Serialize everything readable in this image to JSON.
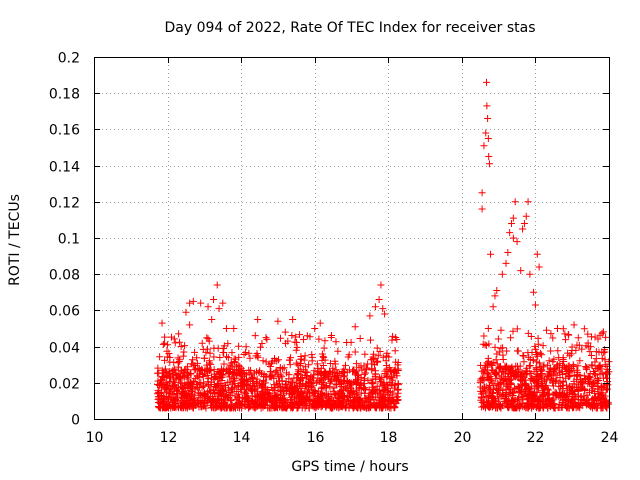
{
  "chart_data": {
    "type": "scatter",
    "title": "Day 094 of 2022, Rate Of TEC Index for receiver stas",
    "xlabel": "GPS time / hours",
    "ylabel": "ROTI / TECUs",
    "xlim": [
      10,
      24
    ],
    "ylim": [
      0,
      0.2
    ],
    "x_ticks": [
      "10",
      "12",
      "14",
      "16",
      "18",
      "20",
      "22",
      "24"
    ],
    "y_ticks": [
      "0",
      "0.02",
      "0.04",
      "0.06",
      "0.08",
      "0.1",
      "0.12",
      "0.14",
      "0.16",
      "0.18",
      "0.2"
    ],
    "grid": true,
    "marker": "+",
    "series_color": "#ff0000",
    "segments": [
      {
        "x_range": [
          11.72,
          18.28
        ],
        "base_range": [
          0.006,
          0.035
        ],
        "extremes": [
          [
            11.85,
            0.053
          ],
          [
            12.0,
            0.041
          ],
          [
            12.3,
            0.047
          ],
          [
            12.5,
            0.059
          ],
          [
            12.6,
            0.052
          ],
          [
            12.6,
            0.064
          ],
          [
            12.7,
            0.065
          ],
          [
            12.9,
            0.064
          ],
          [
            13.1,
            0.062
          ],
          [
            13.2,
            0.055
          ],
          [
            13.25,
            0.066
          ],
          [
            13.35,
            0.074
          ],
          [
            13.4,
            0.061
          ],
          [
            13.5,
            0.064
          ],
          [
            13.6,
            0.05
          ],
          [
            13.8,
            0.05
          ],
          [
            14.45,
            0.055
          ],
          [
            14.7,
            0.044
          ],
          [
            15.0,
            0.054
          ],
          [
            15.2,
            0.048
          ],
          [
            15.4,
            0.055
          ],
          [
            15.8,
            0.046
          ],
          [
            16.0,
            0.05
          ],
          [
            16.15,
            0.053
          ],
          [
            16.45,
            0.045
          ],
          [
            17.1,
            0.051
          ],
          [
            17.5,
            0.057
          ],
          [
            17.65,
            0.062
          ],
          [
            17.75,
            0.066
          ],
          [
            17.8,
            0.074
          ],
          [
            17.85,
            0.061
          ],
          [
            17.9,
            0.058
          ],
          [
            18.2,
            0.045
          ]
        ]
      },
      {
        "x_range": [
          20.5,
          24.0
        ],
        "base_range": [
          0.006,
          0.038
        ],
        "extremes": [
          [
            20.55,
            0.125
          ],
          [
            20.55,
            0.116
          ],
          [
            20.6,
            0.151
          ],
          [
            20.65,
            0.158
          ],
          [
            20.67,
            0.186
          ],
          [
            20.68,
            0.173
          ],
          [
            20.7,
            0.166
          ],
          [
            20.72,
            0.155
          ],
          [
            20.73,
            0.145
          ],
          [
            20.75,
            0.141
          ],
          [
            20.78,
            0.091
          ],
          [
            20.85,
            0.062
          ],
          [
            20.9,
            0.068
          ],
          [
            20.95,
            0.071
          ],
          [
            21.1,
            0.08
          ],
          [
            21.2,
            0.086
          ],
          [
            21.25,
            0.092
          ],
          [
            21.3,
            0.103
          ],
          [
            21.35,
            0.108
          ],
          [
            21.4,
            0.111
          ],
          [
            21.4,
            0.1
          ],
          [
            21.45,
            0.12
          ],
          [
            21.5,
            0.098
          ],
          [
            21.6,
            0.082
          ],
          [
            21.65,
            0.105
          ],
          [
            21.7,
            0.108
          ],
          [
            21.75,
            0.112
          ],
          [
            21.8,
            0.12
          ],
          [
            21.85,
            0.08
          ],
          [
            21.95,
            0.07
          ],
          [
            22.05,
            0.091
          ],
          [
            22.1,
            0.084
          ],
          [
            22.0,
            0.063
          ],
          [
            22.3,
            0.049
          ],
          [
            22.6,
            0.05
          ],
          [
            22.8,
            0.047
          ],
          [
            23.05,
            0.052
          ],
          [
            23.5,
            0.04
          ],
          [
            23.9,
            0.03
          ]
        ]
      }
    ]
  }
}
